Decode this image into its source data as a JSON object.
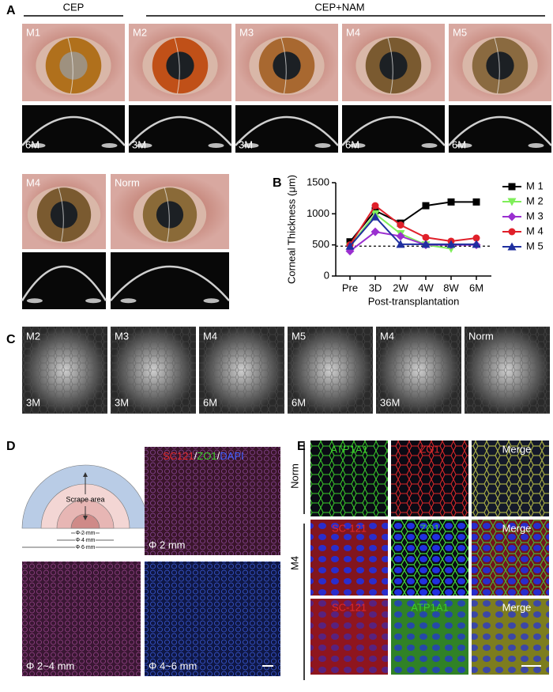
{
  "panels": {
    "A": {
      "letter": "A",
      "groups": [
        "CEP",
        "CEP+NAM"
      ],
      "photos": [
        {
          "label": "M1",
          "oct": "6M"
        },
        {
          "label": "M2",
          "oct": "3M"
        },
        {
          "label": "M3",
          "oct": "3M"
        },
        {
          "label": "M4",
          "oct": "6M"
        },
        {
          "label": "M5",
          "oct": "6M"
        }
      ],
      "photos2": [
        "M4",
        "Norm"
      ]
    },
    "C": {
      "letter": "C",
      "images": [
        {
          "label": "M2",
          "time": "3M"
        },
        {
          "label": "M3",
          "time": "3M"
        },
        {
          "label": "M4",
          "time": "6M"
        },
        {
          "label": "M5",
          "time": "6M"
        },
        {
          "label": "M4",
          "time": "36M"
        },
        {
          "label": "Norm"
        }
      ]
    },
    "D": {
      "letter": "D",
      "scrape": "Scrape area",
      "diameters": [
        "Φ 2 mm",
        "Φ 4 mm",
        "Φ 6 mm"
      ],
      "stains": [
        "SC121",
        "ZO1",
        "DAPI"
      ],
      "separator": "/",
      "images": [
        "Φ 2 mm",
        "Φ 2~4 mm",
        "Φ 4~6 mm"
      ]
    },
    "E": {
      "letter": "E",
      "rows": [
        {
          "group": "Norm",
          "channels": [
            "ATP1A1",
            "ZO1",
            "Merge"
          ]
        },
        {
          "group": "M4",
          "channels": [
            "SC-121",
            "ZO1",
            "Merge"
          ]
        },
        {
          "channels": [
            "SC-121",
            "ATP1A1",
            "Merge"
          ]
        }
      ]
    }
  },
  "chart_data": {
    "type": "line",
    "panel_letter": "B",
    "ylabel": "Corneal Thickness (μm)",
    "xlabel": "Post-transplantation",
    "categories": [
      "Pre",
      "3D",
      "2W",
      "4W",
      "8W",
      "6M"
    ],
    "ylim": [
      0,
      1500
    ],
    "yticks": [
      0,
      500,
      1000,
      1500
    ],
    "reference_line": 480,
    "series": [
      {
        "name": "M 1",
        "color": "#000000",
        "marker": "square",
        "values": [
          550,
          1050,
          850,
          1130,
          1190,
          1190
        ]
      },
      {
        "name": "M 2",
        "color": "#7fee5a",
        "marker": "triangle-down",
        "values": [
          480,
          1000,
          680,
          500,
          440,
          null
        ]
      },
      {
        "name": "M 3",
        "color": "#9a2fd0",
        "marker": "diamond",
        "values": [
          400,
          710,
          640,
          500,
          500,
          500
        ]
      },
      {
        "name": "M 4",
        "color": "#e0202a",
        "marker": "circle",
        "values": [
          500,
          1130,
          820,
          620,
          560,
          610
        ]
      },
      {
        "name": "M 5",
        "color": "#1f2f9f",
        "marker": "triangle",
        "values": [
          480,
          950,
          510,
          510,
          510,
          510
        ]
      }
    ]
  }
}
